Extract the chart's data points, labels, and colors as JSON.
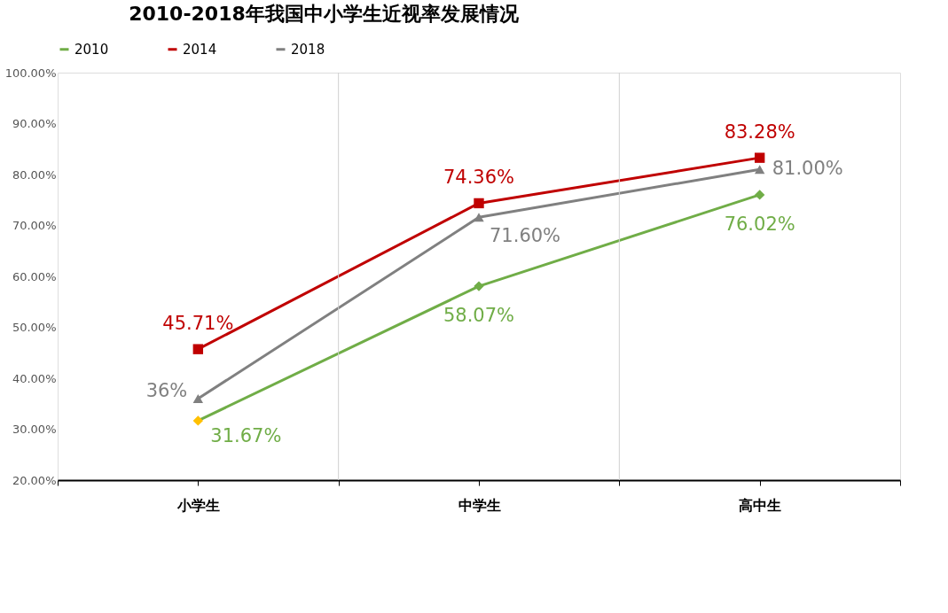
{
  "chart_data": {
    "type": "line",
    "title": "2010-2018年我国中小学生近视率发展情况",
    "categories": [
      "小学生",
      "中学生",
      "高中生"
    ],
    "series": [
      {
        "name": "2010",
        "color": "#70ad47",
        "colors": [
          "#ffc000",
          "#70ad47",
          "#70ad47"
        ],
        "marker": "diamond",
        "values": [
          31.67,
          58.07,
          76.02
        ],
        "value_labels": [
          "31.67%",
          "58.07%",
          "76.02%"
        ]
      },
      {
        "name": "2014",
        "color": "#c00000",
        "marker": "square",
        "values": [
          45.71,
          74.36,
          83.28
        ],
        "value_labels": [
          "45.71%",
          "74.36%",
          "83.28%"
        ]
      },
      {
        "name": "2018",
        "color": "#808080",
        "marker": "triangle",
        "values": [
          36,
          71.6,
          81.0
        ],
        "value_labels": [
          "36%",
          "71.60%",
          "81.00%"
        ]
      }
    ],
    "ylim": [
      20,
      100
    ],
    "yticks": [
      {
        "value": 20,
        "label": "20.00%"
      },
      {
        "value": 30,
        "label": "30.00%"
      },
      {
        "value": 40,
        "label": "40.00%"
      },
      {
        "value": 50,
        "label": "50.00%"
      },
      {
        "value": 60,
        "label": "60.00%"
      },
      {
        "value": 70,
        "label": "70.00%"
      },
      {
        "value": 80,
        "label": "80.00%"
      },
      {
        "value": 90,
        "label": "90.00%"
      },
      {
        "value": 100,
        "label": "100.00%"
      }
    ],
    "grid": "x",
    "legend": "top",
    "line_style": "solid"
  }
}
